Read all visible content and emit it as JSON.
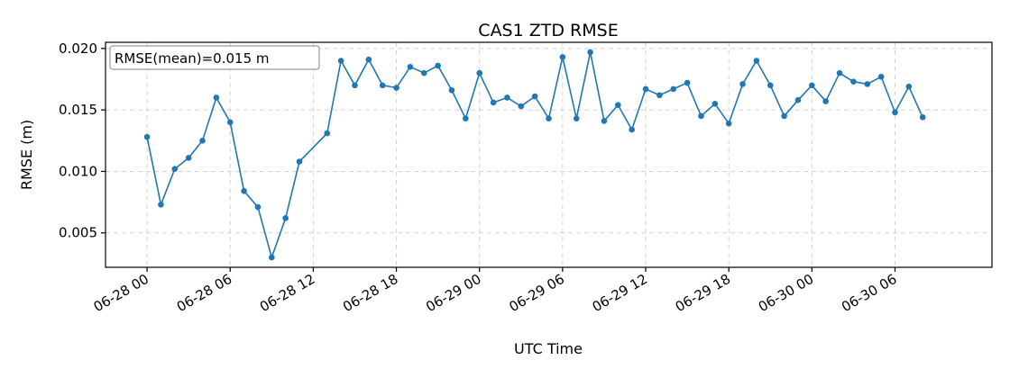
{
  "chart_data": {
    "type": "line",
    "title": "CAS1 ZTD RMSE",
    "xlabel": "UTC Time",
    "ylabel": "RMSE (m)",
    "x_type": "datetime",
    "xlim": [
      "2024-06-27T21:00",
      "2024-06-30T13:00"
    ],
    "ylim": [
      0.0022,
      0.0205
    ],
    "xticks": [
      {
        "value": "2024-06-28T00:00",
        "label": "06-28 00"
      },
      {
        "value": "2024-06-28T06:00",
        "label": "06-28 06"
      },
      {
        "value": "2024-06-28T12:00",
        "label": "06-28 12"
      },
      {
        "value": "2024-06-28T18:00",
        "label": "06-28 18"
      },
      {
        "value": "2024-06-29T00:00",
        "label": "06-29 00"
      },
      {
        "value": "2024-06-29T06:00",
        "label": "06-29 06"
      },
      {
        "value": "2024-06-29T12:00",
        "label": "06-29 12"
      },
      {
        "value": "2024-06-29T18:00",
        "label": "06-29 18"
      },
      {
        "value": "2024-06-30T00:00",
        "label": "06-30 00"
      },
      {
        "value": "2024-06-30T06:00",
        "label": "06-30 06"
      }
    ],
    "yticks": [
      {
        "value": 0.005,
        "label": "0.005"
      },
      {
        "value": 0.01,
        "label": "0.010"
      },
      {
        "value": 0.015,
        "label": "0.015"
      },
      {
        "value": 0.02,
        "label": "0.020"
      }
    ],
    "grid": true,
    "annotation": {
      "text": "RMSE(mean)=0.015 m",
      "position": "top-left"
    },
    "color": "#1f77b4",
    "series": [
      {
        "x": [
          "2024-06-28T00:00",
          "2024-06-28T01:00",
          "2024-06-28T02:00",
          "2024-06-28T03:00",
          "2024-06-28T04:00",
          "2024-06-28T05:00",
          "2024-06-28T06:00",
          "2024-06-28T07:00",
          "2024-06-28T08:00",
          "2024-06-28T09:00",
          "2024-06-28T10:00",
          "2024-06-28T11:00",
          "2024-06-28T13:00",
          "2024-06-28T14:00",
          "2024-06-28T15:00",
          "2024-06-28T16:00",
          "2024-06-28T17:00",
          "2024-06-28T18:00",
          "2024-06-28T19:00",
          "2024-06-28T20:00",
          "2024-06-28T21:00",
          "2024-06-28T22:00",
          "2024-06-28T23:00",
          "2024-06-29T00:00",
          "2024-06-29T01:00",
          "2024-06-29T02:00",
          "2024-06-29T03:00",
          "2024-06-29T04:00",
          "2024-06-29T05:00",
          "2024-06-29T06:00",
          "2024-06-29T07:00",
          "2024-06-29T08:00",
          "2024-06-29T09:00",
          "2024-06-29T10:00",
          "2024-06-29T11:00",
          "2024-06-29T12:00",
          "2024-06-29T13:00",
          "2024-06-29T14:00",
          "2024-06-29T15:00",
          "2024-06-29T16:00",
          "2024-06-29T17:00",
          "2024-06-29T18:00",
          "2024-06-29T19:00",
          "2024-06-29T20:00",
          "2024-06-29T21:00",
          "2024-06-29T22:00",
          "2024-06-29T23:00",
          "2024-06-30T00:00",
          "2024-06-30T01:00",
          "2024-06-30T02:00",
          "2024-06-30T03:00",
          "2024-06-30T04:00",
          "2024-06-30T05:00",
          "2024-06-30T06:00",
          "2024-06-30T07:00",
          "2024-06-30T08:00"
        ],
        "values": [
          0.0128,
          0.0073,
          0.0102,
          0.0111,
          0.0125,
          0.016,
          0.014,
          0.0084,
          0.0071,
          0.003,
          0.0062,
          0.0108,
          0.0131,
          0.019,
          0.017,
          0.0191,
          0.017,
          0.0168,
          0.0185,
          0.018,
          0.0186,
          0.0166,
          0.0143,
          0.018,
          0.0156,
          0.016,
          0.0153,
          0.0161,
          0.0143,
          0.0193,
          0.0143,
          0.0197,
          0.0141,
          0.0154,
          0.0134,
          0.0167,
          0.0162,
          0.0167,
          0.0172,
          0.0145,
          0.0155,
          0.0139,
          0.0171,
          0.019,
          0.017,
          0.0145,
          0.0158,
          0.017,
          0.0157,
          0.018,
          0.0173,
          0.0171,
          0.0177,
          0.0148,
          0.0169,
          0.0144
        ]
      }
    ]
  }
}
